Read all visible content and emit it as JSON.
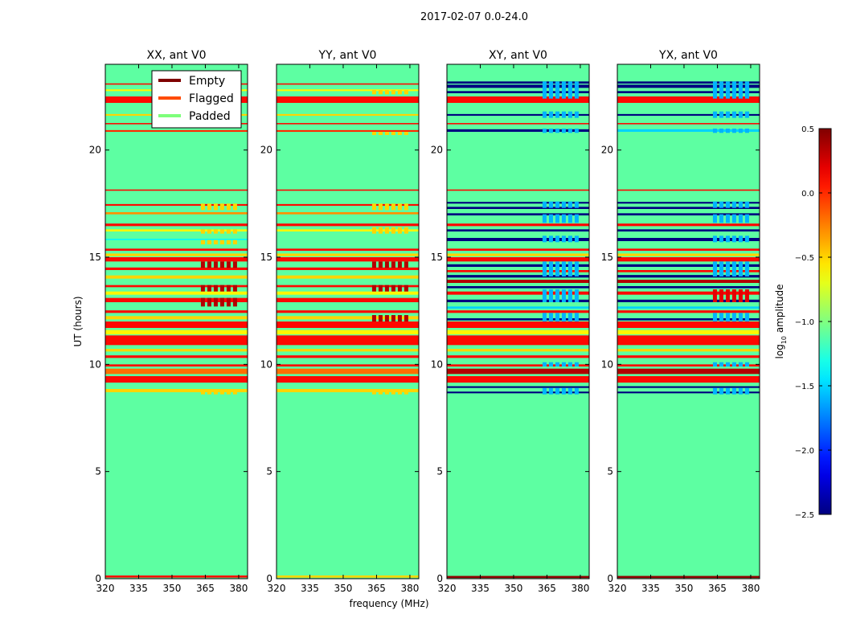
{
  "chart_data": {
    "type": "heatmap",
    "suptitle": "2017-02-07 0.0-24.0",
    "xlabel": "frequency (MHz)",
    "ylabel": "UT (hours)",
    "xlim": [
      320,
      384
    ],
    "ylim": [
      0,
      24
    ],
    "xticks": [
      320,
      335,
      350,
      365,
      380
    ],
    "xtick_labels": [
      "320",
      "335",
      "350",
      "365",
      "380"
    ],
    "yticks": [
      0,
      5,
      10,
      15,
      20
    ],
    "ytick_labels": [
      "0",
      "5",
      "10",
      "15",
      "20"
    ],
    "legend": {
      "location": "upper right of first panel",
      "entries": [
        {
          "label": "Empty",
          "color": "#7f0000"
        },
        {
          "label": "Flagged",
          "color": "#ff4b00"
        },
        {
          "label": "Padded",
          "color": "#7dff7a"
        }
      ]
    },
    "colorbar": {
      "label": "log10 amplitude",
      "label_main": "log",
      "label_sub": "10",
      "label_tail": " amplitude",
      "range": [
        -2.5,
        0.5
      ],
      "ticks": [
        0.5,
        0.0,
        -0.5,
        -1.0,
        -1.5,
        -2.0,
        -2.5
      ],
      "tick_labels": [
        "0.5",
        "0.0",
        "−0.5",
        "−1.0",
        "−1.5",
        "−2.0",
        "−2.5"
      ]
    },
    "panels": [
      {
        "title": "XX, ant V0",
        "background_value": -1.1,
        "rows": [
          {
            "t": 0.05,
            "h": 0.1,
            "v": 0.1
          },
          {
            "t": 8.7,
            "h": 0.15,
            "v": -0.5
          },
          {
            "t": 9.15,
            "h": 0.3,
            "v": 0.1
          },
          {
            "t": 9.55,
            "h": 0.25,
            "v": -0.2
          },
          {
            "t": 9.9,
            "h": 0.1,
            "v": 0.1
          },
          {
            "t": 10.3,
            "h": 0.12,
            "v": 0.1
          },
          {
            "t": 10.6,
            "h": 0.12,
            "v": -0.5
          },
          {
            "t": 10.9,
            "h": 0.45,
            "v": 0.1
          },
          {
            "t": 11.4,
            "h": 0.2,
            "v": -0.6
          },
          {
            "t": 11.7,
            "h": 0.3,
            "v": 0.1
          },
          {
            "t": 12.1,
            "h": 0.15,
            "v": -0.5
          },
          {
            "t": 12.4,
            "h": 0.12,
            "v": 0.1
          },
          {
            "t": 12.9,
            "h": 0.2,
            "v": 0.1
          },
          {
            "t": 13.25,
            "h": 0.15,
            "v": -0.6
          },
          {
            "t": 13.6,
            "h": 0.1,
            "v": 0.1
          },
          {
            "t": 14.0,
            "h": 0.15,
            "v": -0.5
          },
          {
            "t": 14.4,
            "h": 0.12,
            "v": 0.1
          },
          {
            "t": 14.8,
            "h": 0.2,
            "v": 0.1
          },
          {
            "t": 15.05,
            "h": 0.12,
            "v": -0.5
          },
          {
            "t": 15.3,
            "h": 0.1,
            "v": 0.1
          },
          {
            "t": 15.8,
            "h": 0.06,
            "v": -1.4
          },
          {
            "t": 16.2,
            "h": 0.1,
            "v": -0.6
          },
          {
            "t": 16.45,
            "h": 0.12,
            "v": 0.1
          },
          {
            "t": 17.0,
            "h": 0.1,
            "v": -0.3
          },
          {
            "t": 17.4,
            "h": 0.08,
            "v": 0.1
          },
          {
            "t": 18.1,
            "h": 0.06,
            "v": 0.1
          },
          {
            "t": 20.85,
            "h": 0.08,
            "v": 0.0
          },
          {
            "t": 21.2,
            "h": 0.06,
            "v": 0.1
          },
          {
            "t": 21.6,
            "h": 0.08,
            "v": -0.5
          },
          {
            "t": 22.2,
            "h": 0.3,
            "v": 0.1
          },
          {
            "t": 22.75,
            "h": 0.08,
            "v": -0.6
          },
          {
            "t": 23.05,
            "h": 0.06,
            "v": 0.1
          }
        ],
        "blocks": [
          {
            "t": 8.6,
            "h": 0.25,
            "v": -0.5
          },
          {
            "t": 12.7,
            "h": 0.4,
            "v": 0.35
          },
          {
            "t": 13.4,
            "h": 0.3,
            "v": 0.35
          },
          {
            "t": 14.5,
            "h": 0.3,
            "v": 0.35
          },
          {
            "t": 15.6,
            "h": 0.2,
            "v": -0.5
          },
          {
            "t": 16.1,
            "h": 0.2,
            "v": -0.5
          },
          {
            "t": 17.2,
            "h": 0.3,
            "v": -0.5
          }
        ]
      },
      {
        "title": "YY, ant V0",
        "background_value": -1.1,
        "rows": [
          {
            "t": 0.05,
            "h": 0.1,
            "v": -0.5
          },
          {
            "t": 8.7,
            "h": 0.15,
            "v": -0.5
          },
          {
            "t": 9.15,
            "h": 0.3,
            "v": 0.1
          },
          {
            "t": 9.55,
            "h": 0.25,
            "v": -0.2
          },
          {
            "t": 9.9,
            "h": 0.1,
            "v": 0.1
          },
          {
            "t": 10.3,
            "h": 0.12,
            "v": 0.1
          },
          {
            "t": 10.6,
            "h": 0.12,
            "v": -0.5
          },
          {
            "t": 10.9,
            "h": 0.45,
            "v": 0.1
          },
          {
            "t": 11.4,
            "h": 0.2,
            "v": -0.6
          },
          {
            "t": 11.7,
            "h": 0.3,
            "v": 0.1
          },
          {
            "t": 12.1,
            "h": 0.15,
            "v": -0.5
          },
          {
            "t": 12.4,
            "h": 0.12,
            "v": 0.1
          },
          {
            "t": 12.9,
            "h": 0.2,
            "v": 0.1
          },
          {
            "t": 13.25,
            "h": 0.15,
            "v": -0.6
          },
          {
            "t": 13.6,
            "h": 0.1,
            "v": 0.1
          },
          {
            "t": 14.0,
            "h": 0.15,
            "v": -0.5
          },
          {
            "t": 14.4,
            "h": 0.12,
            "v": 0.1
          },
          {
            "t": 14.8,
            "h": 0.2,
            "v": 0.1
          },
          {
            "t": 15.05,
            "h": 0.12,
            "v": -0.5
          },
          {
            "t": 15.3,
            "h": 0.1,
            "v": 0.1
          },
          {
            "t": 16.2,
            "h": 0.1,
            "v": -0.6
          },
          {
            "t": 16.45,
            "h": 0.12,
            "v": 0.1
          },
          {
            "t": 17.0,
            "h": 0.1,
            "v": -0.3
          },
          {
            "t": 17.4,
            "h": 0.08,
            "v": 0.1
          },
          {
            "t": 18.1,
            "h": 0.06,
            "v": 0.1
          },
          {
            "t": 20.85,
            "h": 0.08,
            "v": 0.0
          },
          {
            "t": 21.2,
            "h": 0.06,
            "v": 0.1
          },
          {
            "t": 21.6,
            "h": 0.08,
            "v": -0.5
          },
          {
            "t": 22.2,
            "h": 0.3,
            "v": 0.1
          },
          {
            "t": 22.75,
            "h": 0.08,
            "v": -0.6
          },
          {
            "t": 23.05,
            "h": 0.06,
            "v": 0.1
          }
        ],
        "blocks": [
          {
            "t": 8.6,
            "h": 0.25,
            "v": -0.5
          },
          {
            "t": 12.0,
            "h": 0.3,
            "v": 0.35
          },
          {
            "t": 13.4,
            "h": 0.3,
            "v": 0.35
          },
          {
            "t": 14.5,
            "h": 0.3,
            "v": 0.35
          },
          {
            "t": 16.1,
            "h": 0.3,
            "v": -0.5
          },
          {
            "t": 17.2,
            "h": 0.3,
            "v": -0.5
          },
          {
            "t": 20.7,
            "h": 0.15,
            "v": -0.5
          },
          {
            "t": 22.6,
            "h": 0.2,
            "v": -0.5
          }
        ]
      },
      {
        "title": "XY, ant V0",
        "background_value": -1.1,
        "rows": [
          {
            "t": 0.03,
            "h": 0.1,
            "v": 0.45
          },
          {
            "t": 8.65,
            "h": 0.08,
            "v": -2.5
          },
          {
            "t": 8.9,
            "h": 0.08,
            "v": -2.5
          },
          {
            "t": 9.15,
            "h": 0.3,
            "v": 0.1
          },
          {
            "t": 9.55,
            "h": 0.25,
            "v": 0.35
          },
          {
            "t": 9.9,
            "h": 0.1,
            "v": 0.1
          },
          {
            "t": 10.3,
            "h": 0.12,
            "v": 0.1
          },
          {
            "t": 10.6,
            "h": 0.12,
            "v": -0.5
          },
          {
            "t": 10.9,
            "h": 0.45,
            "v": 0.1
          },
          {
            "t": 11.4,
            "h": 0.2,
            "v": -0.6
          },
          {
            "t": 11.7,
            "h": 0.3,
            "v": 0.1
          },
          {
            "t": 12.05,
            "h": 0.1,
            "v": -2.5
          },
          {
            "t": 12.4,
            "h": 0.12,
            "v": 0.1
          },
          {
            "t": 12.6,
            "h": 0.1,
            "v": -1.5
          },
          {
            "t": 12.9,
            "h": 0.12,
            "v": -2.5
          },
          {
            "t": 13.25,
            "h": 0.15,
            "v": 0.1
          },
          {
            "t": 13.55,
            "h": 0.1,
            "v": -2.5
          },
          {
            "t": 13.8,
            "h": 0.15,
            "v": 0.35
          },
          {
            "t": 14.05,
            "h": 0.12,
            "v": -2.5
          },
          {
            "t": 14.3,
            "h": 0.1,
            "v": 0.1
          },
          {
            "t": 14.55,
            "h": 0.12,
            "v": -2.5
          },
          {
            "t": 14.8,
            "h": 0.2,
            "v": 0.1
          },
          {
            "t": 15.05,
            "h": 0.12,
            "v": -0.5
          },
          {
            "t": 15.3,
            "h": 0.1,
            "v": 0.1
          },
          {
            "t": 15.75,
            "h": 0.15,
            "v": -2.5
          },
          {
            "t": 16.2,
            "h": 0.1,
            "v": -2.5
          },
          {
            "t": 16.45,
            "h": 0.12,
            "v": 0.1
          },
          {
            "t": 16.95,
            "h": 0.1,
            "v": -2.5
          },
          {
            "t": 17.25,
            "h": 0.1,
            "v": -2.5
          },
          {
            "t": 17.5,
            "h": 0.08,
            "v": -2.5
          },
          {
            "t": 18.1,
            "h": 0.06,
            "v": 0.1
          },
          {
            "t": 20.85,
            "h": 0.12,
            "v": -2.5
          },
          {
            "t": 21.2,
            "h": 0.06,
            "v": 0.1
          },
          {
            "t": 21.6,
            "h": 0.08,
            "v": -2.5
          },
          {
            "t": 22.2,
            "h": 0.3,
            "v": 0.1
          },
          {
            "t": 22.65,
            "h": 0.1,
            "v": -2.5
          },
          {
            "t": 22.9,
            "h": 0.15,
            "v": -2.5
          },
          {
            "t": 23.1,
            "h": 0.1,
            "v": -2.5
          }
        ],
        "blocks": [
          {
            "t": 8.6,
            "h": 0.3,
            "v": -1.6
          },
          {
            "t": 9.9,
            "h": 0.2,
            "v": -1.6
          },
          {
            "t": 12.0,
            "h": 0.4,
            "v": -1.6
          },
          {
            "t": 12.9,
            "h": 0.6,
            "v": -1.6
          },
          {
            "t": 14.1,
            "h": 0.7,
            "v": -1.6
          },
          {
            "t": 15.7,
            "h": 0.3,
            "v": -1.6
          },
          {
            "t": 16.6,
            "h": 0.4,
            "v": -1.6
          },
          {
            "t": 17.3,
            "h": 0.3,
            "v": -1.6
          },
          {
            "t": 20.8,
            "h": 0.2,
            "v": -1.6
          },
          {
            "t": 21.5,
            "h": 0.3,
            "v": -1.6
          },
          {
            "t": 22.4,
            "h": 0.8,
            "v": -1.6
          }
        ]
      },
      {
        "title": "YX, ant V0",
        "background_value": -1.1,
        "rows": [
          {
            "t": 0.03,
            "h": 0.1,
            "v": 0.45
          },
          {
            "t": 8.65,
            "h": 0.08,
            "v": -2.5
          },
          {
            "t": 8.9,
            "h": 0.08,
            "v": -2.5
          },
          {
            "t": 9.15,
            "h": 0.3,
            "v": 0.1
          },
          {
            "t": 9.55,
            "h": 0.25,
            "v": 0.35
          },
          {
            "t": 9.9,
            "h": 0.1,
            "v": 0.1
          },
          {
            "t": 10.3,
            "h": 0.12,
            "v": 0.1
          },
          {
            "t": 10.6,
            "h": 0.12,
            "v": -0.5
          },
          {
            "t": 10.9,
            "h": 0.45,
            "v": 0.1
          },
          {
            "t": 11.4,
            "h": 0.2,
            "v": -0.6
          },
          {
            "t": 11.7,
            "h": 0.3,
            "v": 0.1
          },
          {
            "t": 12.05,
            "h": 0.1,
            "v": -2.5
          },
          {
            "t": 12.4,
            "h": 0.12,
            "v": 0.1
          },
          {
            "t": 12.6,
            "h": 0.1,
            "v": -1.5
          },
          {
            "t": 12.9,
            "h": 0.12,
            "v": -2.5
          },
          {
            "t": 13.25,
            "h": 0.15,
            "v": 0.1
          },
          {
            "t": 13.55,
            "h": 0.1,
            "v": -2.5
          },
          {
            "t": 13.8,
            "h": 0.15,
            "v": 0.35
          },
          {
            "t": 14.05,
            "h": 0.12,
            "v": -2.5
          },
          {
            "t": 14.3,
            "h": 0.1,
            "v": 0.1
          },
          {
            "t": 14.55,
            "h": 0.12,
            "v": -2.5
          },
          {
            "t": 14.8,
            "h": 0.2,
            "v": 0.1
          },
          {
            "t": 15.05,
            "h": 0.12,
            "v": -0.5
          },
          {
            "t": 15.3,
            "h": 0.1,
            "v": 0.1
          },
          {
            "t": 15.75,
            "h": 0.15,
            "v": -2.5
          },
          {
            "t": 16.2,
            "h": 0.1,
            "v": -2.5
          },
          {
            "t": 16.45,
            "h": 0.12,
            "v": 0.1
          },
          {
            "t": 16.95,
            "h": 0.1,
            "v": -2.5
          },
          {
            "t": 17.25,
            "h": 0.1,
            "v": -2.5
          },
          {
            "t": 17.5,
            "h": 0.08,
            "v": -2.5
          },
          {
            "t": 18.1,
            "h": 0.06,
            "v": 0.1
          },
          {
            "t": 20.85,
            "h": 0.12,
            "v": -1.5
          },
          {
            "t": 21.2,
            "h": 0.06,
            "v": 0.1
          },
          {
            "t": 21.6,
            "h": 0.08,
            "v": -2.5
          },
          {
            "t": 22.2,
            "h": 0.3,
            "v": 0.1
          },
          {
            "t": 22.65,
            "h": 0.1,
            "v": -2.5
          },
          {
            "t": 22.9,
            "h": 0.15,
            "v": -2.5
          },
          {
            "t": 23.1,
            "h": 0.1,
            "v": -2.5
          }
        ],
        "blocks": [
          {
            "t": 8.6,
            "h": 0.3,
            "v": -1.6
          },
          {
            "t": 9.9,
            "h": 0.2,
            "v": -1.6
          },
          {
            "t": 12.0,
            "h": 0.4,
            "v": -1.6
          },
          {
            "t": 12.9,
            "h": 0.6,
            "v": 0.2
          },
          {
            "t": 14.1,
            "h": 0.7,
            "v": -1.6
          },
          {
            "t": 15.7,
            "h": 0.3,
            "v": -1.6
          },
          {
            "t": 16.6,
            "h": 0.4,
            "v": -1.6
          },
          {
            "t": 17.3,
            "h": 0.3,
            "v": -1.6
          },
          {
            "t": 20.8,
            "h": 0.2,
            "v": -1.6
          },
          {
            "t": 21.5,
            "h": 0.3,
            "v": -1.6
          },
          {
            "t": 22.4,
            "h": 0.8,
            "v": -1.6
          }
        ]
      }
    ]
  }
}
